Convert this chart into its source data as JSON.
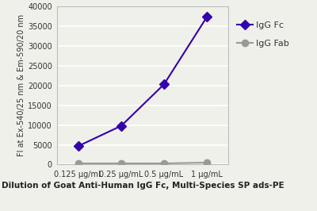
{
  "x_labels": [
    "0.125 μg/mL",
    "0.25 μg/mL",
    "0.5 μg/mL",
    "1 μg/mL"
  ],
  "x_positions": [
    0,
    1,
    2,
    3
  ],
  "igg_fc_values": [
    4700,
    9800,
    20300,
    37300
  ],
  "igg_fab_values": [
    300,
    300,
    300,
    500
  ],
  "igg_fc_color": "#3300aa",
  "igg_fab_color": "#999999",
  "igg_fc_label": "IgG Fc",
  "igg_fab_label": "IgG Fab",
  "ylabel": "FI at Ex-540/25 nm & Em-590/20 nm",
  "xlabel": "Dilution of Goat Anti-Human IgG Fc, Multi-Species SP ads-PE",
  "ylim": [
    0,
    40000
  ],
  "yticks": [
    0,
    5000,
    10000,
    15000,
    20000,
    25000,
    30000,
    35000,
    40000
  ],
  "background_color": "#f0f0eb",
  "grid_color": "#ffffff",
  "axis_fontsize": 7.0,
  "tick_fontsize": 7.0,
  "xlabel_fontsize": 7.5,
  "legend_fontsize": 8.0,
  "line_width": 1.5,
  "marker_size": 6
}
